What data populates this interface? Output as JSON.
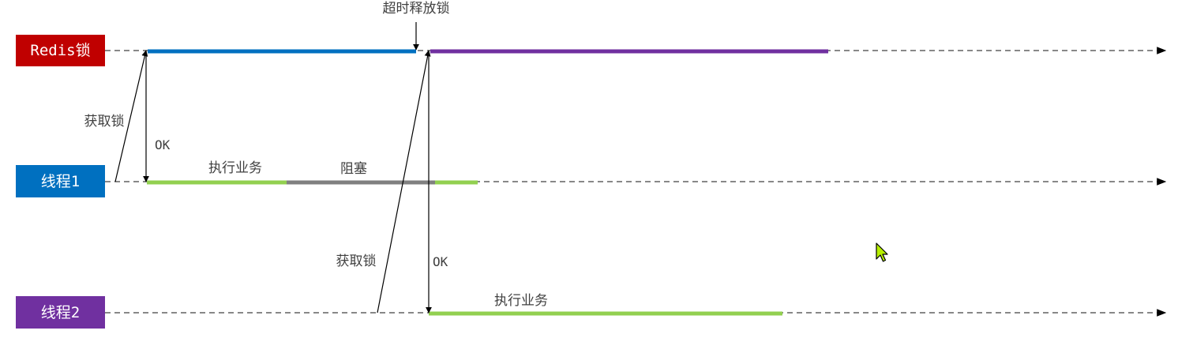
{
  "lanes": {
    "redis": {
      "label": "Redis锁",
      "color": "#C00000"
    },
    "thread1": {
      "label": "线程1",
      "color": "#0070C0"
    },
    "thread2": {
      "label": "线程2",
      "color": "#7030A0"
    }
  },
  "annotations": {
    "timeout_release": "超时释放锁",
    "acquire_lock_1": "获取锁",
    "ok_1": "OK",
    "execute_1": "执行业务",
    "blocked": "阻塞",
    "acquire_lock_2": "获取锁",
    "ok_2": "OK",
    "execute_2": "执行业务"
  },
  "colors": {
    "lock_held_thread1": "#0070C0",
    "lock_held_thread2": "#7030A0",
    "business": "#92D050",
    "blocked": "#808080",
    "timeline": "#404040"
  }
}
